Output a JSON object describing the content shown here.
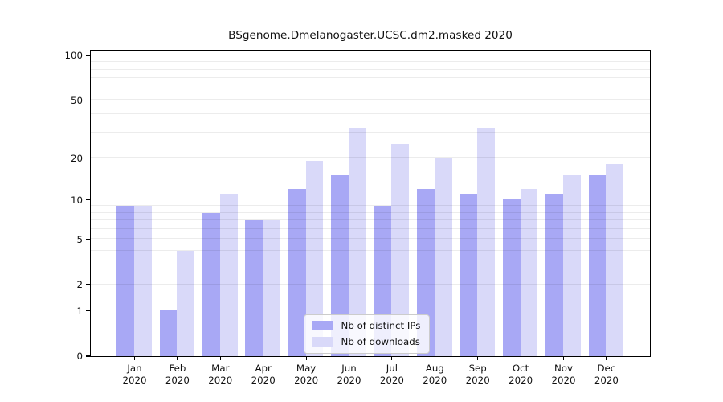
{
  "title": "BSgenome.Dmelanogaster.UCSC.dm2.masked 2020",
  "chart_data": {
    "type": "bar",
    "title": "BSgenome.Dmelanogaster.UCSC.dm2.masked 2020",
    "categories": [
      "Jan 2020",
      "Feb 2020",
      "Mar 2020",
      "Apr 2020",
      "May 2020",
      "Jun 2020",
      "Jul 2020",
      "Aug 2020",
      "Sep 2020",
      "Oct 2020",
      "Nov 2020",
      "Dec 2020"
    ],
    "months": [
      "Jan",
      "Feb",
      "Mar",
      "Apr",
      "May",
      "Jun",
      "Jul",
      "Aug",
      "Sep",
      "Oct",
      "Nov",
      "Dec"
    ],
    "year": "2020",
    "series": [
      {
        "name": "Nb of distinct IPs",
        "color": "#a8a8f5",
        "values": [
          9,
          1,
          8,
          7,
          12,
          15,
          9,
          12,
          11,
          10,
          11,
          15
        ]
      },
      {
        "name": "Nb of downloads",
        "color": "#d9d9f9",
        "values": [
          9,
          4,
          11,
          7,
          19,
          32,
          25,
          20,
          32,
          12,
          15,
          18
        ]
      }
    ],
    "xlabel": "",
    "ylabel": "",
    "y_axis": {
      "scale": "log1p",
      "ticks": [
        100,
        50,
        20,
        10,
        5,
        2,
        1,
        0
      ],
      "range": [
        0,
        108
      ]
    },
    "gridlines": {
      "minor": [
        2,
        3,
        4,
        5,
        6,
        7,
        8,
        9,
        20,
        30,
        40,
        50,
        60,
        70,
        80,
        90
      ],
      "major": [
        1,
        10,
        100
      ]
    },
    "legend": {
      "position": "bottom-center",
      "entries": [
        "Nb of distinct IPs",
        "Nb of downloads"
      ]
    }
  },
  "colors": {
    "bar_distinct_ips": "#a8a8f5",
    "bar_downloads": "#d9d9f9",
    "frame": "#000000",
    "background": "#ffffff"
  }
}
